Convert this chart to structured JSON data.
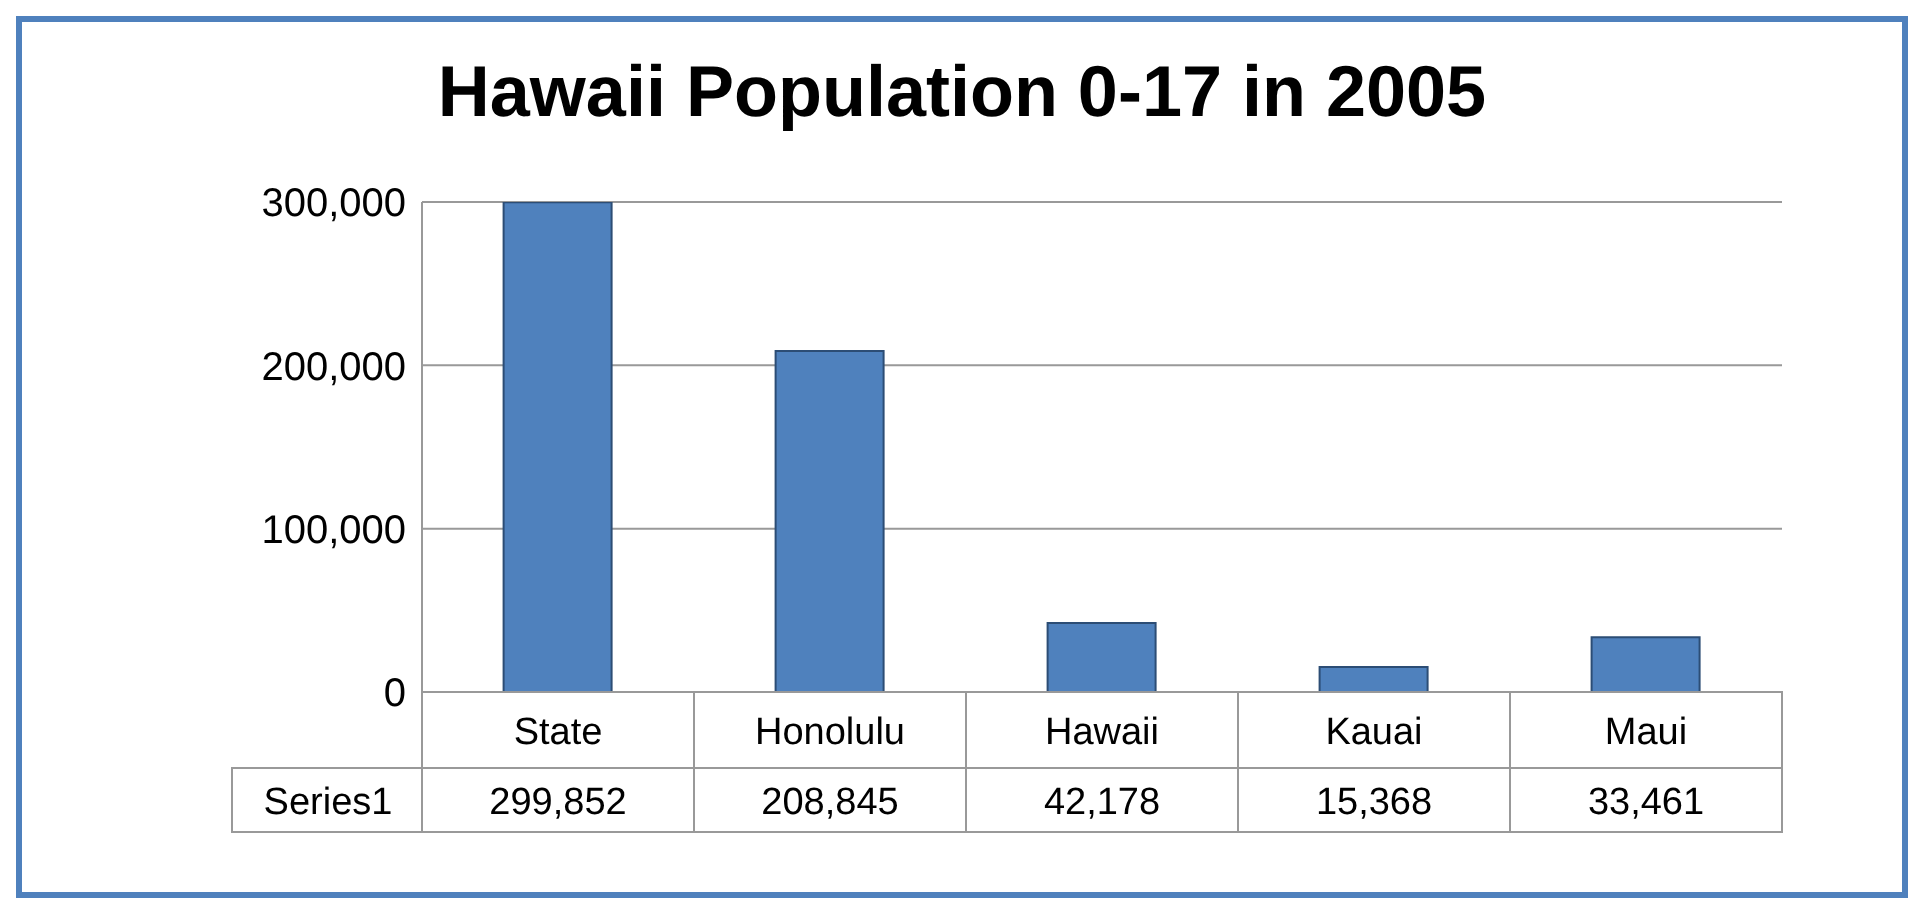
{
  "chart_data": {
    "type": "bar",
    "title": "Hawaii Population 0-17 in 2005",
    "categories": [
      "State",
      "Honolulu",
      "Hawaii",
      "Kauai",
      "Maui"
    ],
    "series": [
      {
        "name": "Series1",
        "color": "#4f81bd",
        "values": [
          299852,
          208845,
          42178,
          15368,
          33461
        ],
        "value_labels": [
          "299,852",
          "208,845",
          "42,178",
          "15,368",
          "33,461"
        ]
      }
    ],
    "ylim": [
      0,
      300000
    ],
    "yticks": [
      0,
      {
        "value": 100000,
        "label": "100,000"
      },
      {
        "value": 200000,
        "label": "200,000"
      },
      {
        "value": 300000,
        "label": "300,000"
      }
    ],
    "grid": "y",
    "legend": false
  }
}
